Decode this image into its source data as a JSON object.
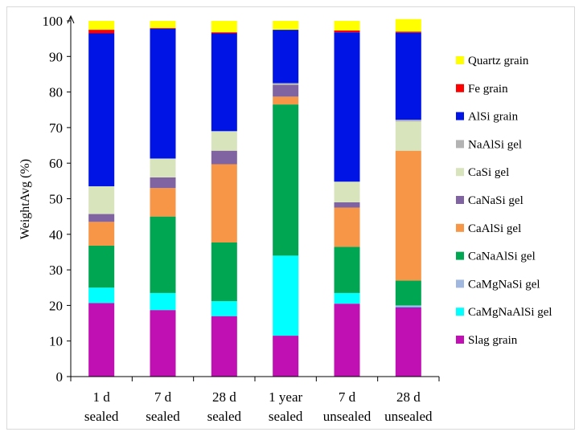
{
  "chart_data": {
    "type": "bar",
    "stacked": true,
    "title": "",
    "xlabel": "",
    "ylabel": "WeightAvg (%)",
    "ylim": [
      0,
      100
    ],
    "yticks": [
      0,
      10,
      20,
      30,
      40,
      50,
      60,
      70,
      80,
      90,
      100
    ],
    "grid": false,
    "legend_position": "right",
    "categories": [
      [
        "1 d",
        "sealed"
      ],
      [
        "7 d",
        "sealed"
      ],
      [
        "28 d",
        "sealed"
      ],
      [
        "1 year",
        "sealed"
      ],
      [
        "7 d",
        "unsealed"
      ],
      [
        "28 d",
        "unsealed"
      ]
    ],
    "series": [
      {
        "name": "Slag grain",
        "color": "#c00fb3",
        "values": [
          20.7,
          18.7,
          17.0,
          11.5,
          20.5,
          19.5
        ]
      },
      {
        "name": "CaMgNaAlSi gel",
        "color": "#00ffff",
        "values": [
          4.3,
          4.8,
          4.2,
          22.5,
          3.0,
          0.2
        ]
      },
      {
        "name": "CaMgNaSi gel",
        "color": "#a0b8e0",
        "values": [
          0.0,
          0.0,
          0.0,
          0.0,
          0.0,
          0.3
        ]
      },
      {
        "name": "CaNaAlSi gel",
        "color": "#00a651",
        "values": [
          11.8,
          21.5,
          16.5,
          42.5,
          13.0,
          7.0
        ]
      },
      {
        "name": "CaAlSi gel",
        "color": "#f79646",
        "values": [
          6.7,
          8.0,
          22.0,
          2.2,
          11.0,
          36.5
        ]
      },
      {
        "name": "CaNaSi gel",
        "color": "#8064a2",
        "values": [
          2.2,
          3.0,
          3.8,
          3.3,
          1.5,
          0.0
        ]
      },
      {
        "name": "CaSi gel",
        "color": "#d8e4bc",
        "values": [
          7.8,
          5.3,
          5.5,
          0.0,
          5.8,
          8.2
        ]
      },
      {
        "name": "NaAlSi gel",
        "color": "#b3b3b3",
        "values": [
          0.0,
          0.0,
          0.0,
          0.5,
          0.0,
          0.5
        ]
      },
      {
        "name": "AlSi grain",
        "color": "#0014e6",
        "values": [
          43.0,
          36.5,
          27.5,
          15.0,
          42.0,
          24.5
        ]
      },
      {
        "name": "Fe grain",
        "color": "#ff0000",
        "values": [
          1.0,
          0.2,
          0.3,
          0.0,
          0.5,
          0.3
        ]
      },
      {
        "name": "Quartz grain",
        "color": "#ffff00",
        "values": [
          2.5,
          2.0,
          3.2,
          2.5,
          2.7,
          3.5
        ]
      }
    ],
    "legend_order": [
      "Quartz grain",
      "Fe grain",
      "AlSi grain",
      "NaAlSi gel",
      "CaSi gel",
      "CaNaSi gel",
      "CaAlSi gel",
      "CaNaAlSi gel",
      "CaMgNaSi gel",
      "CaMgNaAlSi gel",
      "Slag grain"
    ]
  }
}
